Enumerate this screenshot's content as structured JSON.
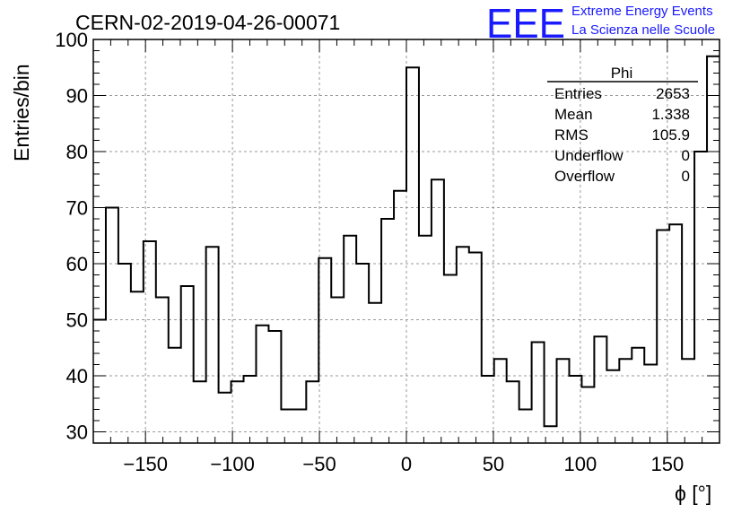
{
  "chart_data": {
    "type": "histogram",
    "title": "CERN-02-2019-04-26-00071",
    "xlabel": "ϕ [°]",
    "ylabel": "Entries/bin",
    "xlim": [
      -180,
      180
    ],
    "ylim": [
      28,
      100
    ],
    "grid": true,
    "bin_width": 7.2,
    "values": [
      50,
      70,
      60,
      55,
      64,
      54,
      45,
      56,
      39,
      63,
      37,
      39,
      40,
      49,
      48,
      34,
      34,
      39,
      61,
      54,
      65,
      60,
      53,
      68,
      73,
      95,
      65,
      75,
      58,
      63,
      62,
      40,
      43,
      39,
      34,
      46,
      31,
      43,
      40,
      38,
      47,
      41,
      43,
      45,
      42,
      66,
      67,
      43,
      80,
      97
    ],
    "x_ticks": [
      -150,
      -100,
      -50,
      0,
      50,
      100,
      150
    ],
    "x_tick_labels": [
      "−150",
      "−100",
      "−50",
      "0",
      "50",
      "100",
      "150"
    ],
    "y_ticks": [
      30,
      40,
      50,
      60,
      70,
      80,
      90,
      100
    ],
    "y_tick_labels": [
      "30",
      "40",
      "50",
      "60",
      "70",
      "80",
      "90",
      "100"
    ],
    "stats": {
      "name": "Phi",
      "rows": [
        {
          "label": "Entries",
          "value": "2653"
        },
        {
          "label": "Mean",
          "value": "1.338"
        },
        {
          "label": "RMS",
          "value": "105.9"
        },
        {
          "label": "Underflow",
          "value": "0"
        },
        {
          "label": "Overflow",
          "value": "0"
        }
      ]
    }
  },
  "logo": {
    "letters": "EEE",
    "line1": "Extreme Energy Events",
    "line2": "La Scienza nelle Scuole",
    "color": "#1a1aff"
  }
}
